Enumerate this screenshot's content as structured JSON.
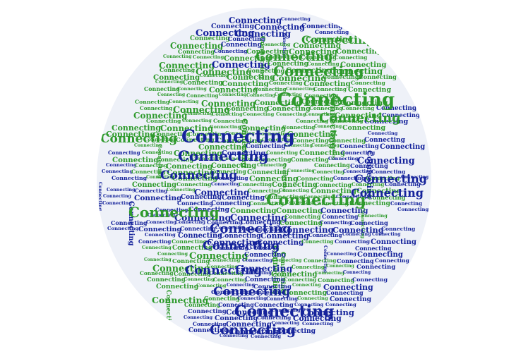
{
  "word_cloud": {
    "word": "Connecting",
    "colors": {
      "ocean": "#15239b",
      "land": "#2e9a2c",
      "background_disc": "#eef1f8"
    }
  }
}
